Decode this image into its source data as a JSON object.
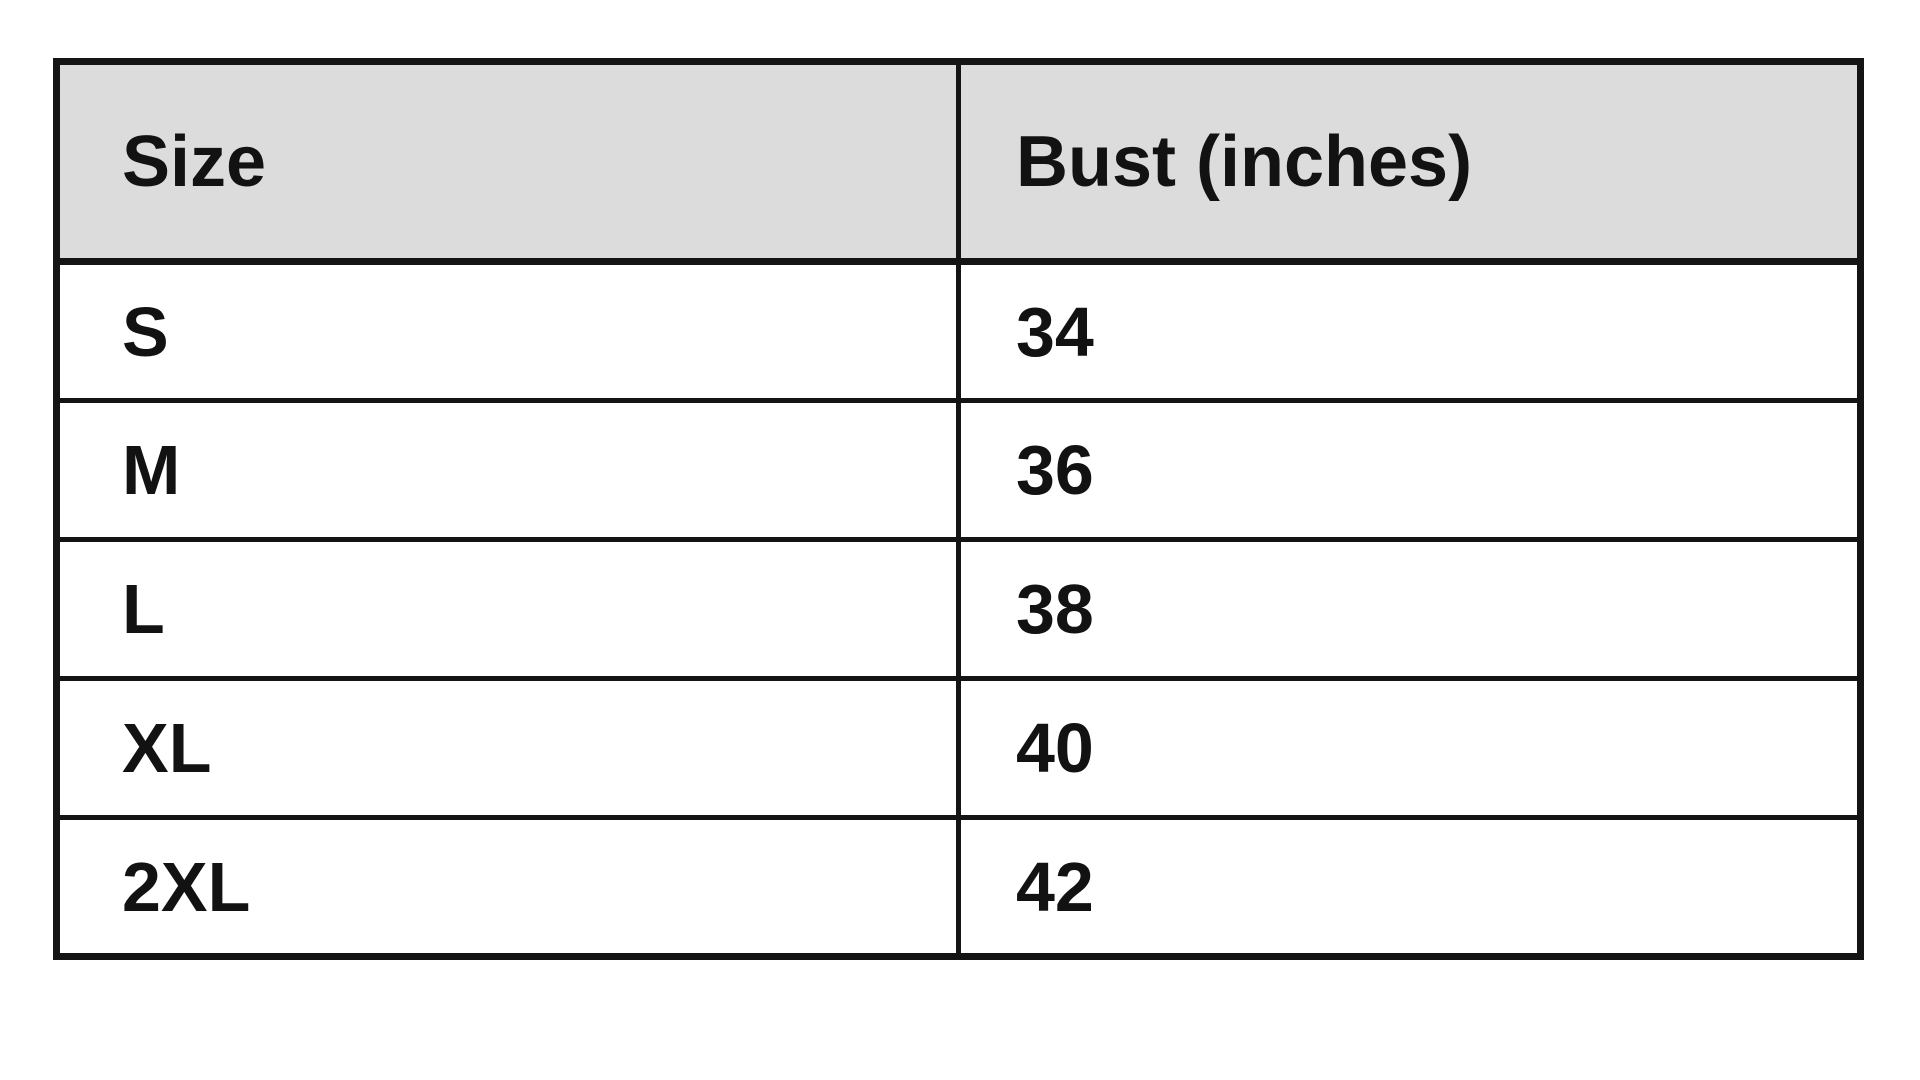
{
  "chart_data": {
    "type": "table",
    "title": "",
    "columns": [
      "Size",
      "Bust (inches)"
    ],
    "rows": [
      [
        "S",
        "34"
      ],
      [
        "M",
        "36"
      ],
      [
        "L",
        "38"
      ],
      [
        "XL",
        "40"
      ],
      [
        "2XL",
        "42"
      ]
    ]
  },
  "colors": {
    "header_bg": "#dcdcdc",
    "row_bg": "#ffffff",
    "border": "#141414",
    "text": "#121212",
    "page_bg": "#ffffff"
  }
}
